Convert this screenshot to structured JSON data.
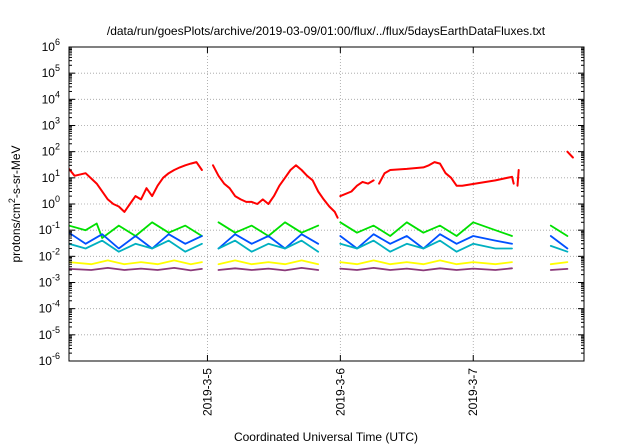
{
  "chart_data": {
    "type": "line",
    "title": "/data/run/goesPlots/archive/2019-03-09/01:00/flux/../flux/5daysEarthDataFluxes.txt",
    "xlabel": "Coordinated Universal Time (UTC)",
    "ylabel": "protons/cm²-s-sr-MeV",
    "yscale": "log",
    "ylim": [
      1e-06,
      1000000.0
    ],
    "xlim": [
      "2019-03-04 00:00",
      "2019-03-08 20:00"
    ],
    "grid": true,
    "y_ticks": [
      {
        "value": -6,
        "label": "10",
        "exp": "-6"
      },
      {
        "value": -5,
        "label": "10",
        "exp": "-5"
      },
      {
        "value": -4,
        "label": "10",
        "exp": "-4"
      },
      {
        "value": -3,
        "label": "10",
        "exp": "-3"
      },
      {
        "value": -2,
        "label": "10",
        "exp": "-2"
      },
      {
        "value": -1,
        "label": "10",
        "exp": "-1"
      },
      {
        "value": 0,
        "label": "10",
        "exp": "0"
      },
      {
        "value": 1,
        "label": "10",
        "exp": "1"
      },
      {
        "value": 2,
        "label": "10",
        "exp": "2"
      },
      {
        "value": 3,
        "label": "10",
        "exp": "3"
      },
      {
        "value": 4,
        "label": "10",
        "exp": "4"
      },
      {
        "value": 5,
        "label": "10",
        "exp": "5"
      },
      {
        "value": 6,
        "label": "10",
        "exp": "6"
      }
    ],
    "x_ticks": [
      {
        "hours": 24,
        "label": "2019-3-5"
      },
      {
        "hours": 48,
        "label": "2019-3-6"
      },
      {
        "hours": 72,
        "label": "2019-3-7"
      }
    ],
    "series": [
      {
        "color": "#ff0000",
        "points": [
          [
            -1,
            22
          ],
          [
            0,
            12
          ],
          [
            2,
            15
          ],
          [
            4,
            6
          ],
          [
            6,
            1.5
          ],
          [
            7,
            1
          ],
          [
            8,
            0.8
          ],
          [
            9,
            0.5
          ],
          [
            10,
            1
          ],
          [
            11,
            2
          ],
          [
            12,
            1.5
          ],
          [
            13,
            4
          ],
          [
            14,
            2
          ],
          [
            15,
            5
          ],
          [
            16,
            10
          ],
          [
            17,
            15
          ],
          [
            18,
            20
          ],
          [
            19,
            25
          ],
          [
            20,
            30
          ],
          [
            21,
            35
          ],
          [
            22,
            40
          ],
          [
            23,
            20
          ],
          null,
          [
            23.8,
            15
          ],
          null,
          [
            25,
            30
          ],
          [
            26,
            12
          ],
          [
            27,
            6
          ],
          [
            28,
            4
          ],
          [
            29,
            2
          ],
          [
            30,
            1.5
          ],
          [
            31,
            1.2
          ],
          [
            32,
            1.2
          ],
          [
            33,
            1
          ],
          [
            34,
            1.5
          ],
          [
            35,
            1
          ],
          [
            36,
            2
          ],
          [
            37,
            5
          ],
          [
            38,
            10
          ],
          [
            39,
            20
          ],
          [
            40,
            30
          ],
          [
            41,
            20
          ],
          [
            42,
            12
          ],
          [
            43,
            8
          ],
          [
            44,
            3
          ],
          [
            45,
            1.5
          ],
          [
            46,
            0.8
          ],
          [
            47,
            0.5
          ],
          [
            47.5,
            0.3
          ],
          null,
          [
            48,
            2
          ],
          [
            50,
            3
          ],
          [
            51,
            5
          ],
          [
            52,
            7
          ],
          [
            53,
            6
          ],
          [
            54,
            8
          ],
          null,
          [
            55,
            6
          ],
          [
            56,
            15
          ],
          [
            57,
            20
          ],
          [
            60,
            22
          ],
          [
            63,
            25
          ],
          [
            64,
            30
          ],
          [
            65,
            40
          ],
          [
            66,
            35
          ],
          [
            67,
            15
          ],
          [
            68,
            10
          ],
          [
            69,
            5
          ],
          [
            70,
            5
          ],
          [
            76,
            8
          ],
          [
            79,
            11
          ],
          [
            79.3,
            6
          ],
          null,
          [
            80,
            5
          ],
          [
            80.2,
            20
          ],
          null,
          [
            89,
            100
          ],
          [
            90,
            60
          ]
        ]
      },
      {
        "color": "#00e000",
        "points": [
          [
            -1,
            0.15
          ],
          [
            2,
            0.1
          ],
          [
            4,
            0.18
          ],
          [
            5,
            0.05
          ],
          [
            8,
            0.15
          ],
          [
            11,
            0.06
          ],
          [
            14,
            0.2
          ],
          [
            17,
            0.08
          ],
          [
            20,
            0.15
          ],
          [
            23,
            0.06
          ],
          null,
          [
            26,
            0.2
          ],
          [
            29,
            0.08
          ],
          [
            32,
            0.15
          ],
          [
            35,
            0.06
          ],
          [
            38,
            0.2
          ],
          [
            41,
            0.08
          ],
          [
            44,
            0.15
          ],
          null,
          [
            48,
            0.2
          ],
          [
            51,
            0.08
          ],
          [
            54,
            0.15
          ],
          [
            57,
            0.06
          ],
          [
            60,
            0.2
          ],
          [
            63,
            0.08
          ],
          [
            66,
            0.15
          ],
          [
            69,
            0.06
          ],
          [
            72,
            0.2
          ],
          [
            76,
            0.1
          ],
          [
            79,
            0.06
          ],
          null,
          [
            86,
            0.15
          ],
          [
            89,
            0.06
          ]
        ]
      },
      {
        "color": "#0050ff",
        "points": [
          [
            -1,
            0.08
          ],
          [
            2,
            0.03
          ],
          [
            5,
            0.07
          ],
          [
            8,
            0.02
          ],
          [
            11,
            0.06
          ],
          [
            14,
            0.02
          ],
          [
            17,
            0.07
          ],
          [
            20,
            0.03
          ],
          [
            23,
            0.06
          ],
          null,
          [
            26,
            0.02
          ],
          [
            29,
            0.07
          ],
          [
            32,
            0.03
          ],
          [
            35,
            0.06
          ],
          [
            38,
            0.02
          ],
          [
            41,
            0.07
          ],
          [
            44,
            0.03
          ],
          null,
          [
            48,
            0.06
          ],
          [
            51,
            0.02
          ],
          [
            54,
            0.07
          ],
          [
            57,
            0.03
          ],
          [
            60,
            0.06
          ],
          [
            63,
            0.02
          ],
          [
            66,
            0.07
          ],
          [
            69,
            0.03
          ],
          [
            72,
            0.06
          ],
          [
            76,
            0.04
          ],
          [
            79,
            0.03
          ],
          null,
          [
            86,
            0.06
          ],
          [
            89,
            0.02
          ]
        ]
      },
      {
        "color": "#00b0c0",
        "points": [
          [
            -1,
            0.03
          ],
          [
            2,
            0.02
          ],
          [
            5,
            0.04
          ],
          [
            8,
            0.015
          ],
          [
            11,
            0.03
          ],
          [
            14,
            0.02
          ],
          [
            17,
            0.04
          ],
          [
            20,
            0.015
          ],
          [
            23,
            0.03
          ],
          null,
          [
            26,
            0.02
          ],
          [
            29,
            0.04
          ],
          [
            32,
            0.015
          ],
          [
            35,
            0.03
          ],
          [
            38,
            0.02
          ],
          [
            41,
            0.04
          ],
          [
            44,
            0.015
          ],
          null,
          [
            48,
            0.03
          ],
          [
            51,
            0.02
          ],
          [
            54,
            0.04
          ],
          [
            57,
            0.015
          ],
          [
            60,
            0.03
          ],
          [
            63,
            0.02
          ],
          [
            66,
            0.04
          ],
          [
            69,
            0.015
          ],
          [
            72,
            0.03
          ],
          [
            76,
            0.02
          ],
          [
            79,
            0.02
          ],
          null,
          [
            86,
            0.025
          ],
          [
            89,
            0.015
          ]
        ]
      },
      {
        "color": "#ffff00",
        "points": [
          [
            -1,
            0.006
          ],
          [
            3,
            0.005
          ],
          [
            6,
            0.007
          ],
          [
            9,
            0.005
          ],
          [
            12,
            0.006
          ],
          [
            15,
            0.005
          ],
          [
            18,
            0.007
          ],
          [
            21,
            0.005
          ],
          [
            23,
            0.006
          ],
          null,
          [
            26,
            0.005
          ],
          [
            29,
            0.007
          ],
          [
            32,
            0.005
          ],
          [
            35,
            0.006
          ],
          [
            38,
            0.005
          ],
          [
            41,
            0.007
          ],
          [
            44,
            0.005
          ],
          null,
          [
            48,
            0.006
          ],
          [
            51,
            0.005
          ],
          [
            54,
            0.007
          ],
          [
            57,
            0.005
          ],
          [
            60,
            0.006
          ],
          [
            63,
            0.005
          ],
          [
            66,
            0.007
          ],
          [
            69,
            0.005
          ],
          [
            72,
            0.006
          ],
          [
            76,
            0.005
          ],
          [
            79,
            0.006
          ],
          null,
          [
            86,
            0.005
          ],
          [
            89,
            0.006
          ]
        ]
      },
      {
        "color": "#8b3a7a",
        "points": [
          [
            -1,
            0.0033
          ],
          [
            3,
            0.003
          ],
          [
            6,
            0.0036
          ],
          [
            9,
            0.003
          ],
          [
            12,
            0.0034
          ],
          [
            15,
            0.003
          ],
          [
            18,
            0.0036
          ],
          [
            21,
            0.0029
          ],
          [
            23,
            0.0033
          ],
          null,
          [
            26,
            0.003
          ],
          [
            29,
            0.0035
          ],
          [
            32,
            0.003
          ],
          [
            35,
            0.0034
          ],
          [
            38,
            0.0029
          ],
          [
            41,
            0.0036
          ],
          [
            44,
            0.003
          ],
          null,
          [
            48,
            0.0034
          ],
          [
            51,
            0.003
          ],
          [
            54,
            0.0036
          ],
          [
            57,
            0.003
          ],
          [
            60,
            0.0034
          ],
          [
            63,
            0.0029
          ],
          [
            66,
            0.0035
          ],
          [
            69,
            0.003
          ],
          [
            72,
            0.0034
          ],
          [
            76,
            0.003
          ],
          [
            79,
            0.0035
          ],
          null,
          [
            86,
            0.003
          ],
          [
            89,
            0.0033
          ]
        ]
      }
    ]
  }
}
